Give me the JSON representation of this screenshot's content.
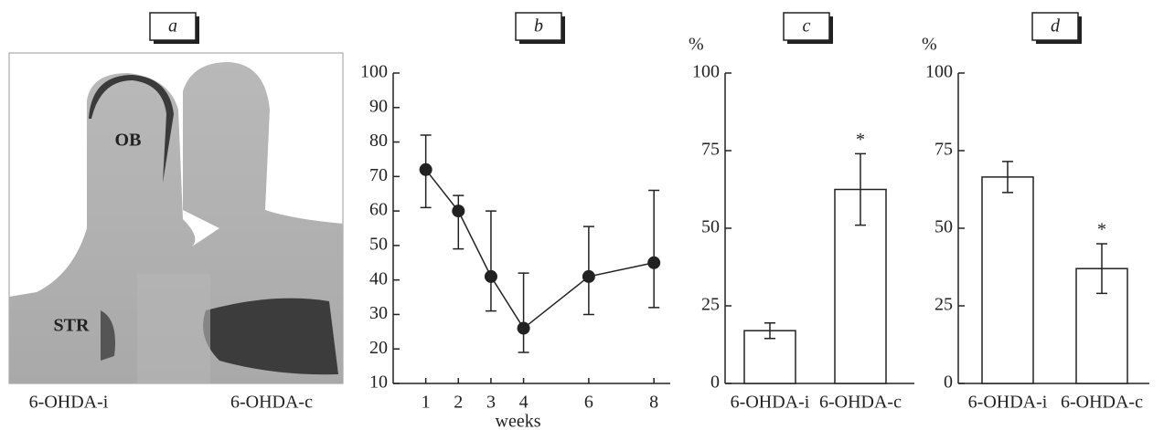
{
  "chart_data": [
    {
      "type": "image",
      "panel": "a",
      "labels": [
        "OB",
        "STR"
      ],
      "categories": [
        "6-OHDA-i",
        "6-OHDA-c"
      ]
    },
    {
      "type": "line",
      "panel": "b",
      "x": [
        1,
        2,
        3,
        4,
        6,
        8
      ],
      "values": [
        72,
        60,
        41,
        26,
        41,
        45
      ],
      "error_low": [
        11,
        11,
        10,
        7,
        11,
        13
      ],
      "error_high": [
        10,
        4.5,
        19,
        16,
        14.5,
        21
      ],
      "xlim": [
        0,
        8.5
      ],
      "xticks": [
        1,
        2,
        3,
        4,
        6,
        8
      ],
      "ylim": [
        10,
        100
      ],
      "yticks": [
        10,
        20,
        30,
        40,
        50,
        60,
        70,
        80,
        90,
        100
      ],
      "xlabel": "weeks",
      "color": "#222222"
    },
    {
      "type": "bar",
      "panel": "c",
      "ylabel": "%",
      "categories": [
        "6-OHDA-i",
        "6-OHDA-c"
      ],
      "values": [
        17,
        62.5
      ],
      "errors": [
        2.5,
        11.5
      ],
      "significant": [
        false,
        true
      ],
      "marker": "*",
      "ylim": [
        0,
        100
      ],
      "yticks": [
        0,
        25,
        50,
        75,
        100
      ],
      "color": "#ffffff"
    },
    {
      "type": "bar",
      "panel": "d",
      "ylabel": "%",
      "categories": [
        "6-OHDA-i",
        "6-OHDA-c"
      ],
      "values": [
        66.5,
        37
      ],
      "errors": [
        5,
        8
      ],
      "significant": [
        false,
        true
      ],
      "marker": "*",
      "ylim": [
        0,
        100
      ],
      "yticks": [
        0,
        25,
        50,
        75,
        100
      ],
      "color": "#ffffff"
    }
  ]
}
